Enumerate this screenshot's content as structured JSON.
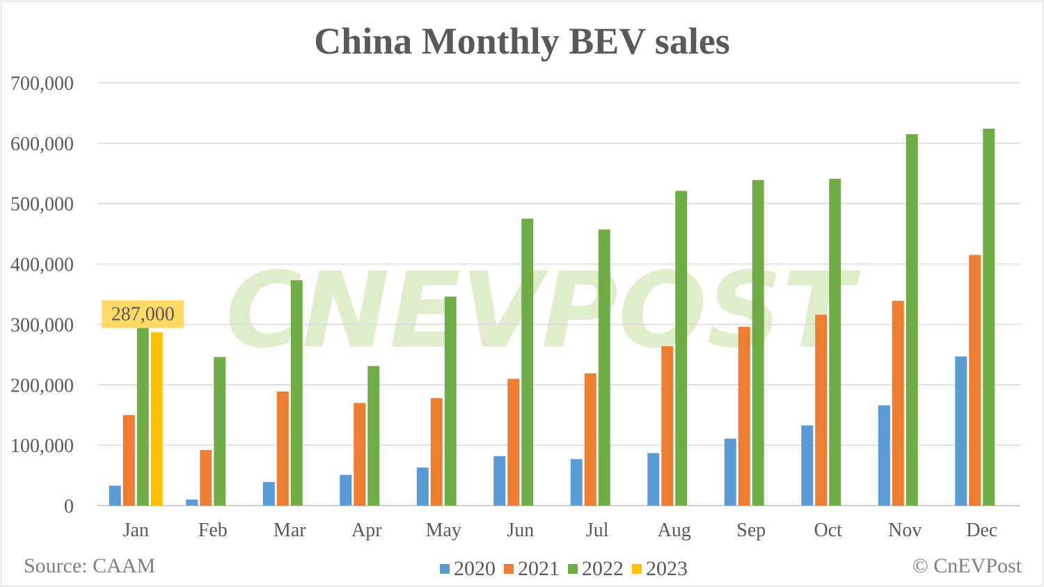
{
  "header": {
    "title": "China Monthly BEV sales"
  },
  "footer": {
    "source": "Source: CAAM",
    "credit": "© CnEVPost"
  },
  "watermark": "CNEVPOST",
  "colors": {
    "2020": "#5b9bd5",
    "2021": "#ed7d31",
    "2022": "#70ad47",
    "2023": "#ffc000",
    "highlight_bg": "#ffd966"
  },
  "chart_data": {
    "type": "bar",
    "title": "China Monthly BEV sales",
    "xlabel": "",
    "ylabel": "",
    "ylim": [
      0,
      700000
    ],
    "yticks": [
      0,
      100000,
      200000,
      300000,
      400000,
      500000,
      600000,
      700000
    ],
    "ytick_labels": [
      "0",
      "100,000",
      "200,000",
      "300,000",
      "400,000",
      "500,000",
      "600,000",
      "700,000"
    ],
    "grid": true,
    "legend_position": "bottom",
    "categories": [
      "Jan",
      "Feb",
      "Mar",
      "Apr",
      "May",
      "Jun",
      "Jul",
      "Aug",
      "Sep",
      "Oct",
      "Nov",
      "Dec"
    ],
    "series": [
      {
        "name": "2020",
        "color": "#5b9bd5",
        "values": [
          33000,
          10000,
          39000,
          51000,
          63000,
          82000,
          77000,
          87000,
          111000,
          133000,
          166000,
          247000
        ]
      },
      {
        "name": "2021",
        "color": "#ed7d31",
        "values": [
          150000,
          92000,
          189000,
          170000,
          178000,
          210000,
          219000,
          264000,
          296000,
          316000,
          339000,
          415000
        ]
      },
      {
        "name": "2022",
        "color": "#70ad47",
        "values": [
          307000,
          246000,
          373000,
          231000,
          346000,
          475000,
          457000,
          521000,
          539000,
          541000,
          615000,
          624000
        ]
      },
      {
        "name": "2023",
        "color": "#ffc000",
        "values": [
          287000,
          null,
          null,
          null,
          null,
          null,
          null,
          null,
          null,
          null,
          null,
          null
        ]
      }
    ],
    "annotations": [
      {
        "category": "Jan",
        "series": "2023",
        "text": "287,000"
      }
    ]
  }
}
